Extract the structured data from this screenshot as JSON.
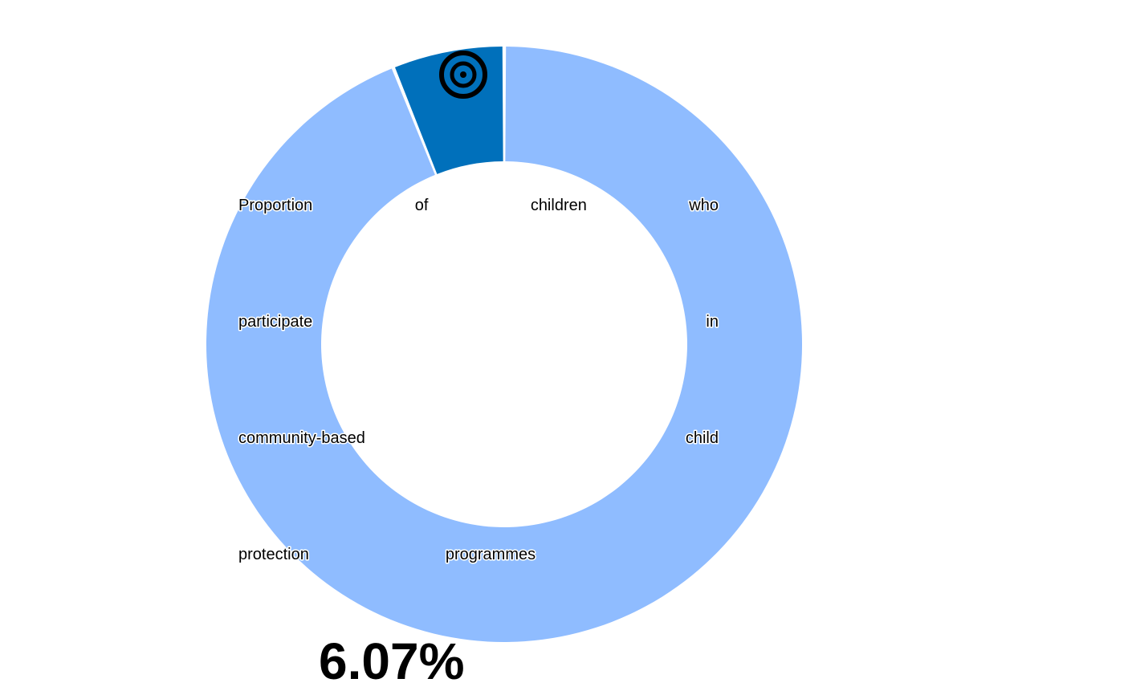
{
  "chart_data": {
    "type": "pie",
    "variant": "donut",
    "title": "",
    "overlay_label": "Proportion of children who participate in community-based child protection programmes",
    "slices": [
      {
        "label": "",
        "value": 6.07,
        "color": "#0070bb"
      },
      {
        "label": "",
        "value": 93.93,
        "color": "#8fbcff"
      }
    ],
    "value_label": "6.07%",
    "legend": "none",
    "icon": "target-icon",
    "colors": {
      "highlight": "#0070bb",
      "remainder": "#8fbcff",
      "text": "#000000",
      "background": "#ffffff"
    }
  }
}
